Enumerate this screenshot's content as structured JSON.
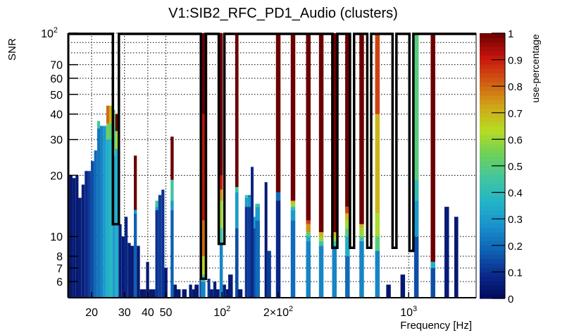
{
  "chart_data": {
    "type": "heatmap",
    "title": "V1:SIB2_RFC_PD1_Audio (clusters)",
    "xlabel": "Frequency [Hz]",
    "ylabel": "SNR",
    "xscale": "log",
    "yscale": "log",
    "xlim": [
      15,
      2300
    ],
    "ylim": [
      5,
      100
    ],
    "grid": true,
    "x_ticks": [
      {
        "value": 20,
        "label": "20"
      },
      {
        "value": 30,
        "label": "30"
      },
      {
        "value": 40,
        "label": "40"
      },
      {
        "value": 50,
        "label": "50"
      },
      {
        "value": 100,
        "label": "10",
        "sup": "2"
      },
      {
        "value": 200,
        "label": "2×10",
        "sup": "2"
      },
      {
        "value": 1000,
        "label": "10",
        "sup": "3"
      }
    ],
    "y_ticks": [
      {
        "value": 6,
        "label": "6"
      },
      {
        "value": 7,
        "label": "7"
      },
      {
        "value": 8,
        "label": "8"
      },
      {
        "value": 10,
        "label": "10"
      },
      {
        "value": 20,
        "label": "20"
      },
      {
        "value": 30,
        "label": "30"
      },
      {
        "value": 40,
        "label": "40"
      },
      {
        "value": 50,
        "label": "50"
      },
      {
        "value": 60,
        "label": "60"
      },
      {
        "value": 70,
        "label": "70"
      },
      {
        "value": 100,
        "label": "10",
        "sup": "2"
      }
    ],
    "colorbar": {
      "label": "use-percentage",
      "range": [
        0,
        1
      ],
      "ticks": [
        "0",
        "0.1",
        "0.2",
        "0.3",
        "0.4",
        "0.5",
        "0.6",
        "0.7",
        "0.8",
        "0.9",
        "1"
      ],
      "stops": [
        "#000a5c",
        "#0b2a8c",
        "#0e62b4",
        "#1a90cc",
        "#22b4c8",
        "#42c6a0",
        "#6ed057",
        "#b8dc22",
        "#d1a418",
        "#d15a12",
        "#c8140e",
        "#6c0000"
      ]
    },
    "columns": [
      {
        "f": 15.5,
        "top": 20.0,
        "segs": [
          [
            0.04,
            20.0
          ]
        ]
      },
      {
        "f": 16.1,
        "top": 19.4,
        "segs": [
          [
            0.05,
            19.4
          ]
        ]
      },
      {
        "f": 16.7,
        "top": 20.0,
        "segs": [
          [
            0.04,
            20.0
          ]
        ]
      },
      {
        "f": 17.3,
        "top": 15.5,
        "segs": [
          [
            0.05,
            15.5
          ]
        ]
      },
      {
        "f": 18.0,
        "top": 18.0,
        "segs": [
          [
            0.06,
            18.0
          ]
        ]
      },
      {
        "f": 18.7,
        "top": 21.0,
        "segs": [
          [
            0.08,
            21.0
          ]
        ]
      },
      {
        "f": 19.4,
        "top": 21.0,
        "segs": [
          [
            0.12,
            21.0
          ]
        ]
      },
      {
        "f": 20.2,
        "top": 23.5,
        "segs": [
          [
            0.15,
            23.5
          ]
        ]
      },
      {
        "f": 21.0,
        "top": 26.5,
        "segs": [
          [
            0.2,
            26.5
          ]
        ]
      },
      {
        "f": 21.8,
        "top": 37.0,
        "segs": [
          [
            0.22,
            34.0
          ],
          [
            0.45,
            37.0
          ]
        ]
      },
      {
        "f": 22.6,
        "top": 35.0,
        "segs": [
          [
            0.25,
            35.0
          ]
        ]
      },
      {
        "f": 23.5,
        "top": 35.0,
        "segs": [
          [
            0.3,
            35.0
          ]
        ]
      },
      {
        "f": 24.4,
        "top": 44.0,
        "segs": [
          [
            0.35,
            30.0
          ],
          [
            0.55,
            36.0
          ],
          [
            0.8,
            44.0
          ]
        ]
      },
      {
        "f": 25.3,
        "top": 44.0,
        "segs": [
          [
            0.38,
            30.0
          ],
          [
            0.5,
            36.0
          ],
          [
            0.7,
            44.0
          ]
        ]
      },
      {
        "f": 26.3,
        "top": 42.0,
        "segs": [
          [
            0.3,
            25.0
          ],
          [
            0.45,
            34.0
          ],
          [
            0.5,
            42.0
          ]
        ]
      },
      {
        "f": 27.3,
        "top": 40.0,
        "segs": [
          [
            0.35,
            27.0
          ],
          [
            0.6,
            33.0
          ],
          [
            1.0,
            40.0
          ]
        ]
      },
      {
        "f": 28.4,
        "top": 11.5,
        "segs": [
          [
            0.06,
            11.5
          ]
        ]
      },
      {
        "f": 29.5,
        "top": 10.0,
        "segs": [
          [
            0.05,
            10.0
          ]
        ]
      },
      {
        "f": 30.6,
        "top": 12.5,
        "segs": [
          [
            0.08,
            12.5
          ]
        ]
      },
      {
        "f": 31.8,
        "top": 9.3,
        "segs": [
          [
            0.05,
            9.3
          ]
        ]
      },
      {
        "f": 33.0,
        "top": 9.0,
        "segs": [
          [
            0.05,
            9.0
          ]
        ]
      },
      {
        "f": 34.3,
        "top": 25.0,
        "segs": [
          [
            0.18,
            13.0
          ],
          [
            0.3,
            13.5
          ],
          [
            1.0,
            25.0
          ]
        ]
      },
      {
        "f": 35.6,
        "top": 9.0,
        "segs": [
          [
            0.04,
            9.0
          ]
        ]
      },
      {
        "f": 37.0,
        "top": 5.5,
        "segs": [
          [
            0.04,
            5.5
          ]
        ]
      },
      {
        "f": 38.4,
        "top": 5.5,
        "segs": [
          [
            0.04,
            5.5
          ]
        ]
      },
      {
        "f": 39.9,
        "top": 7.5,
        "segs": [
          [
            0.04,
            7.5
          ]
        ]
      },
      {
        "f": 41.4,
        "top": 5.5,
        "segs": [
          [
            0.04,
            5.5
          ]
        ]
      },
      {
        "f": 43.0,
        "top": 5.5,
        "segs": [
          [
            0.04,
            5.5
          ]
        ]
      },
      {
        "f": 44.7,
        "top": 15.0,
        "segs": [
          [
            0.1,
            13.5
          ],
          [
            0.3,
            14.0
          ],
          [
            0.45,
            15.0
          ]
        ]
      },
      {
        "f": 46.4,
        "top": 16.0,
        "segs": [
          [
            0.12,
            16.0
          ]
        ]
      },
      {
        "f": 48.2,
        "top": 17.0,
        "segs": [
          [
            0.1,
            17.0
          ]
        ]
      },
      {
        "f": 50.0,
        "top": 7.0,
        "segs": [
          [
            0.04,
            7.0
          ]
        ]
      },
      {
        "f": 52.0,
        "top": 5.0,
        "segs": [
          [
            0.03,
            5.0
          ]
        ]
      },
      {
        "f": 54.0,
        "top": 31.0,
        "segs": [
          [
            0.18,
            13.5
          ],
          [
            0.3,
            15.0
          ],
          [
            0.45,
            19.0
          ],
          [
            1.0,
            31.0
          ]
        ]
      },
      {
        "f": 56.1,
        "top": 5.8,
        "segs": [
          [
            0.04,
            5.8
          ]
        ]
      },
      {
        "f": 58.3,
        "top": 5.5,
        "segs": [
          [
            0.04,
            5.5
          ]
        ]
      },
      {
        "f": 62.8,
        "top": 5.5,
        "segs": [
          [
            0.04,
            5.5
          ]
        ]
      },
      {
        "f": 67.8,
        "top": 5.8,
        "segs": [
          [
            0.04,
            5.8
          ]
        ]
      },
      {
        "f": 70.4,
        "top": 5.5,
        "segs": [
          [
            0.04,
            5.5
          ]
        ]
      },
      {
        "f": 73.1,
        "top": 5.8,
        "segs": [
          [
            0.04,
            5.8
          ]
        ]
      },
      {
        "f": 77.0,
        "top": 6.2,
        "segs": [
          [
            0.15,
            6.2
          ]
        ]
      },
      {
        "f": 79.2,
        "top": 100.0,
        "segs": [
          [
            0.25,
            6.0
          ],
          [
            0.45,
            6.5
          ],
          [
            0.65,
            8.0
          ],
          [
            0.8,
            12.0
          ],
          [
            0.92,
            40.0
          ],
          [
            1.0,
            100.0
          ]
        ]
      },
      {
        "f": 85.0,
        "top": 6.2,
        "segs": [
          [
            0.1,
            6.2
          ]
        ]
      },
      {
        "f": 88.0,
        "top": 5.5,
        "segs": [
          [
            0.05,
            5.5
          ]
        ]
      },
      {
        "f": 91.5,
        "top": 6.0,
        "segs": [
          [
            0.05,
            6.0
          ]
        ]
      },
      {
        "f": 95.0,
        "top": 5.5,
        "segs": [
          [
            0.05,
            5.5
          ]
        ]
      },
      {
        "f": 99.0,
        "top": 100.0,
        "segs": [
          [
            0.25,
            9.2
          ],
          [
            0.45,
            11.0
          ],
          [
            0.6,
            15.0
          ],
          [
            0.75,
            17.0
          ],
          [
            0.9,
            20.0
          ],
          [
            1.0,
            100.0
          ]
        ]
      },
      {
        "f": 103.0,
        "top": 5.8,
        "segs": [
          [
            0.05,
            5.8
          ]
        ]
      },
      {
        "f": 107.0,
        "top": 5.5,
        "segs": [
          [
            0.04,
            5.5
          ]
        ]
      },
      {
        "f": 111.0,
        "top": 6.5,
        "segs": [
          [
            0.05,
            6.5
          ]
        ]
      },
      {
        "f": 120.0,
        "top": 100.0,
        "segs": [
          [
            0.15,
            11.0
          ],
          [
            0.3,
            16.5
          ],
          [
            0.45,
            17.5
          ],
          [
            1.0,
            100.0
          ]
        ]
      },
      {
        "f": 125.0,
        "top": 5.5,
        "segs": [
          [
            0.04,
            5.5
          ]
        ]
      },
      {
        "f": 135.0,
        "top": 16.0,
        "segs": [
          [
            0.1,
            14.0
          ],
          [
            0.3,
            15.5
          ],
          [
            0.45,
            16.0
          ]
        ]
      },
      {
        "f": 140.0,
        "top": 16.0,
        "segs": [
          [
            0.12,
            14.0
          ],
          [
            0.3,
            15.5
          ],
          [
            0.25,
            16.0
          ]
        ]
      },
      {
        "f": 145.0,
        "top": 22.0,
        "segs": [
          [
            0.08,
            22.0
          ]
        ]
      },
      {
        "f": 150.0,
        "top": 12.5,
        "segs": [
          [
            0.15,
            11.0
          ],
          [
            0.3,
            12.5
          ]
        ]
      },
      {
        "f": 155.0,
        "top": 14.5,
        "segs": [
          [
            0.2,
            12.0
          ],
          [
            0.3,
            14.0
          ],
          [
            0.45,
            14.5
          ]
        ]
      },
      {
        "f": 172.0,
        "top": 18.5,
        "segs": [
          [
            0.04,
            18.5
          ]
        ]
      },
      {
        "f": 178.0,
        "top": 8.5,
        "segs": [
          [
            0.12,
            8.5
          ]
        ]
      },
      {
        "f": 200.0,
        "top": 100.0,
        "segs": [
          [
            0.08,
            15.0
          ],
          [
            0.2,
            16.5
          ],
          [
            1.0,
            100.0
          ]
        ]
      },
      {
        "f": 240.0,
        "top": 100.0,
        "segs": [
          [
            0.2,
            12.0
          ],
          [
            0.3,
            13.5
          ],
          [
            0.4,
            14.0
          ],
          [
            0.6,
            14.5
          ],
          [
            0.7,
            15.0
          ],
          [
            1.0,
            100.0
          ]
        ]
      },
      {
        "f": 290.0,
        "top": 100.0,
        "segs": [
          [
            0.25,
            9.5
          ],
          [
            0.35,
            10.0
          ],
          [
            0.5,
            10.5
          ],
          [
            0.75,
            11.5
          ],
          [
            0.85,
            12.0
          ],
          [
            1.0,
            100.0
          ]
        ]
      },
      {
        "f": 340.0,
        "top": 100.0,
        "segs": [
          [
            0.25,
            9.0
          ],
          [
            0.45,
            9.5
          ],
          [
            0.6,
            10.0
          ],
          [
            0.7,
            10.5
          ],
          [
            1.0,
            100.0
          ]
        ]
      },
      {
        "f": 400.0,
        "top": 100.0,
        "segs": [
          [
            0.25,
            9.0
          ],
          [
            0.45,
            9.5
          ],
          [
            0.6,
            10.0
          ],
          [
            0.7,
            10.5
          ],
          [
            1.0,
            100.0
          ]
        ]
      },
      {
        "f": 470.0,
        "top": 100.0,
        "segs": [
          [
            0.2,
            8.0
          ],
          [
            0.35,
            10.0
          ],
          [
            0.5,
            11.0
          ],
          [
            0.6,
            12.0
          ],
          [
            0.7,
            13.0
          ],
          [
            0.85,
            14.0
          ],
          [
            1.0,
            100.0
          ]
        ]
      },
      {
        "f": 560.0,
        "top": 100.0,
        "segs": [
          [
            0.25,
            9.5
          ],
          [
            0.45,
            10.0
          ],
          [
            0.6,
            11.0
          ],
          [
            0.7,
            11.5
          ],
          [
            1.0,
            100.0
          ]
        ]
      },
      {
        "f": 680.0,
        "top": 100.0,
        "segs": [
          [
            0.25,
            8.5
          ],
          [
            0.5,
            10.0
          ],
          [
            0.62,
            13.0
          ],
          [
            0.7,
            40.0
          ],
          [
            0.85,
            100.0
          ]
        ]
      },
      {
        "f": 780.0,
        "top": 5.8,
        "segs": [
          [
            0.04,
            5.8
          ]
        ]
      },
      {
        "f": 930.0,
        "top": 6.5,
        "segs": [
          [
            0.04,
            6.5
          ]
        ]
      },
      {
        "f": 1100.0,
        "top": 100.0,
        "segs": [
          [
            0.15,
            10.0
          ],
          [
            0.3,
            15.0
          ],
          [
            0.4,
            19.0
          ],
          [
            0.5,
            100.0
          ]
        ]
      },
      {
        "f": 1350.0,
        "top": 100.0,
        "segs": [
          [
            0.15,
            7.0
          ],
          [
            0.35,
            7.5
          ],
          [
            1.0,
            100.0
          ]
        ]
      },
      {
        "f": 1600.0,
        "top": 14.0,
        "segs": [
          [
            0.05,
            14.0
          ]
        ]
      },
      {
        "f": 1800.0,
        "top": 12.5,
        "segs": [
          [
            0.04,
            12.5
          ]
        ]
      }
    ],
    "clusters": [
      {
        "f_low": 26.0,
        "f_high": 28.0,
        "snr_low": 11.5
      },
      {
        "f_low": 77.0,
        "f_high": 82.0,
        "snr_low": 6.2
      },
      {
        "f_low": 96.0,
        "f_high": 103.0,
        "snr_low": 9.2
      },
      {
        "f_low": 390.0,
        "f_high": 415.0,
        "snr_low": 8.8
      },
      {
        "f_low": 485.0,
        "f_high": 510.0,
        "snr_low": 8.8
      },
      {
        "f_low": 600.0,
        "f_high": 630.0,
        "snr_low": 8.8
      },
      {
        "f_low": 820.0,
        "f_high": 860.0,
        "snr_low": 8.8
      },
      {
        "f_low": 1010.0,
        "f_high": 1060.0,
        "snr_low": 8.5
      }
    ]
  }
}
